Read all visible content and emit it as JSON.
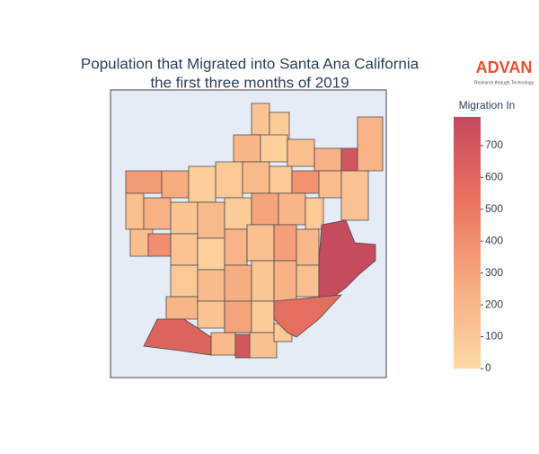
{
  "chart_data": {
    "type": "choropleth",
    "title": [
      "Population that Migrated into Santa Ana California",
      "the first three months of 2019"
    ],
    "logo": {
      "name": "ADVAN",
      "tagline": "Research through Technology"
    },
    "colorbar_title": "Migration In",
    "zlim": [
      0,
      790
    ],
    "zticks": [
      0,
      100,
      200,
      300,
      400,
      500,
      600,
      700
    ],
    "colorscale": [
      "#fdd9a3",
      "#f7ab80",
      "#e9735f",
      "#c4495f"
    ],
    "values": [
      120,
      80,
      200,
      60,
      150,
      230,
      700,
      210,
      100,
      180,
      90,
      380,
      160,
      130,
      330,
      260,
      70,
      150,
      230,
      120,
      180,
      80,
      300,
      200,
      100,
      160,
      400,
      130,
      60,
      220,
      140,
      320,
      190,
      90,
      170,
      250,
      110,
      230,
      150,
      200,
      120,
      300,
      80,
      180,
      140,
      90,
      780,
      560,
      620,
      700
    ]
  }
}
